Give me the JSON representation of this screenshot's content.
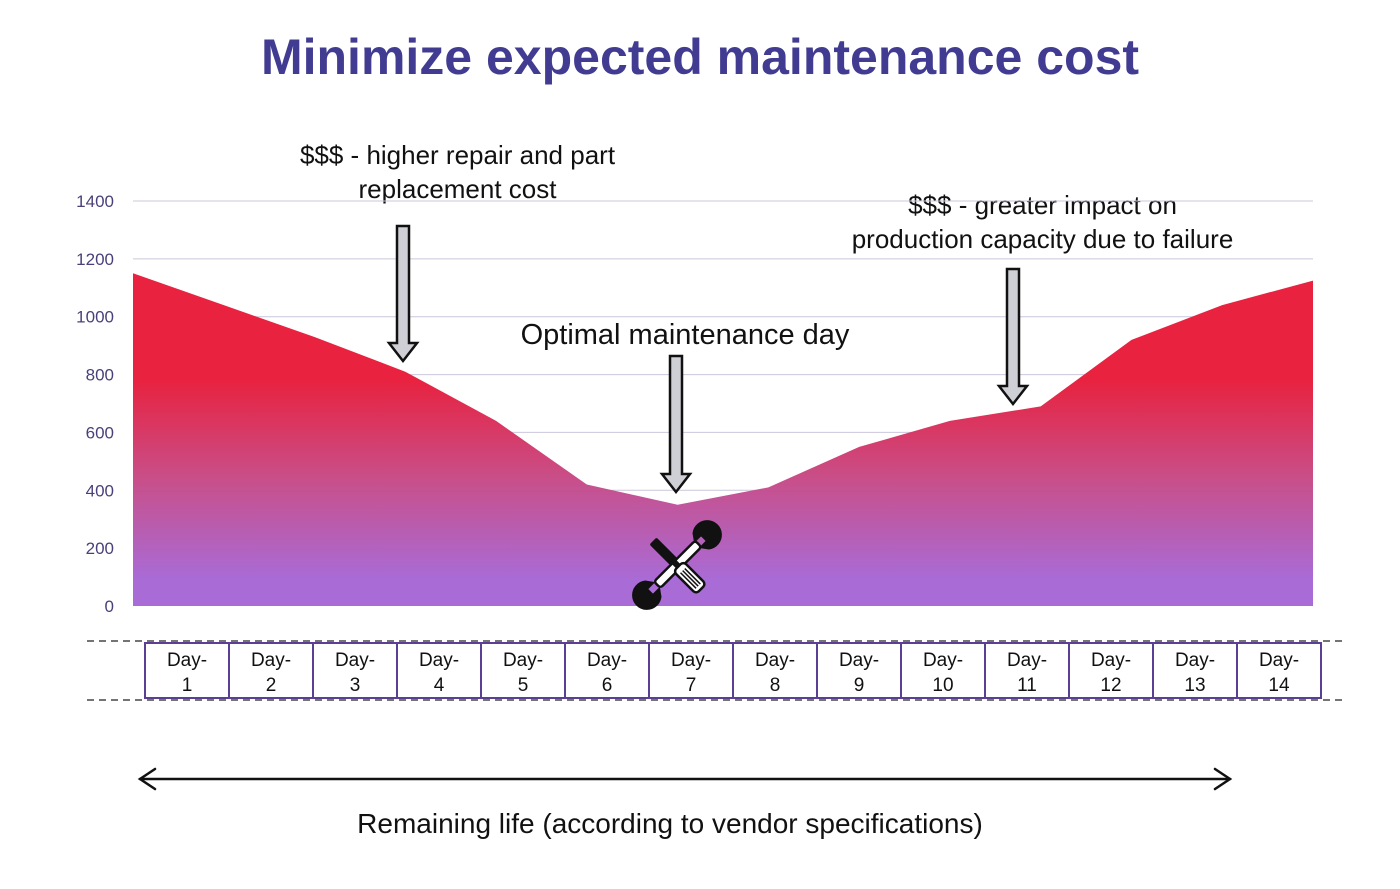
{
  "title": "Minimize expected maintenance cost",
  "annotations": {
    "left_line1": "$$$ - higher repair and part",
    "left_line2": "replacement cost",
    "right_line1": "$$$ - greater impact on",
    "right_line2": "production capacity due to failure",
    "center": "Optimal maintenance day"
  },
  "icon": "tools-icon",
  "footer": "Remaining life (according to vendor specifications)",
  "colors": {
    "title": "#413c91",
    "area_top": "#e8223f",
    "area_bottom": "#a96bd6",
    "axis_text": "#4b3f7a",
    "box_border": "#5b3f94"
  },
  "chart_data": {
    "type": "area",
    "categories": [
      "Day-1",
      "Day-2",
      "Day-3",
      "Day-4",
      "Day-5",
      "Day-6",
      "Day-7",
      "Day-8",
      "Day-9",
      "Day-10",
      "Day-11",
      "Day-12",
      "Day-13",
      "Day-14"
    ],
    "x_labels_top": [
      "Day-",
      "Day-",
      "Day-",
      "Day-",
      "Day-",
      "Day-",
      "Day-",
      "Day-",
      "Day-",
      "Day-",
      "Day-",
      "Day-",
      "Day-",
      "Day-"
    ],
    "x_labels_bottom": [
      "1",
      "2",
      "3",
      "4",
      "5",
      "6",
      "7",
      "8",
      "9",
      "10",
      "11",
      "12",
      "13",
      "14"
    ],
    "values": [
      1150,
      1040,
      930,
      810,
      640,
      420,
      350,
      410,
      550,
      640,
      690,
      920,
      1040,
      1125
    ],
    "yticks": [
      "0",
      "200",
      "400",
      "600",
      "800",
      "1000",
      "1200",
      "1400"
    ],
    "ylim": [
      0,
      1400
    ],
    "grid": true
  }
}
